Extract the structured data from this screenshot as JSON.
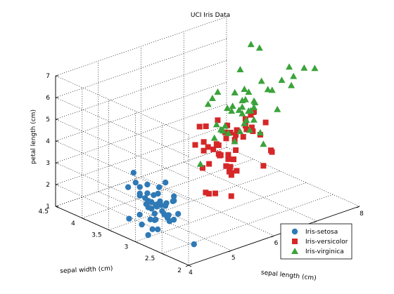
{
  "chart_data": {
    "type": "scatter",
    "title": "UCI Iris Data",
    "xlabel": "sepal length (cm)",
    "ylabel": "sepal width (cm)",
    "zlabel": "petal length (cm)",
    "xlim": [
      4,
      8
    ],
    "ylim": [
      2,
      4.5
    ],
    "zlim": [
      1,
      7
    ],
    "xticks": [
      "4",
      "5",
      "6",
      "7",
      "8"
    ],
    "yticks": [
      "2",
      "2.5",
      "3",
      "3.5",
      "4",
      "4.5"
    ],
    "zticks": [
      "1",
      "2",
      "3",
      "4",
      "5",
      "6",
      "7"
    ],
    "grid": true,
    "legend_position": "bottom-right",
    "series": [
      {
        "name": "Iris-setosa",
        "marker": "circle",
        "color": "#2f7ab6",
        "points": [
          [
            5.1,
            3.5,
            1.4
          ],
          [
            4.9,
            3.0,
            1.4
          ],
          [
            4.7,
            3.2,
            1.3
          ],
          [
            4.6,
            3.1,
            1.5
          ],
          [
            5.0,
            3.6,
            1.4
          ],
          [
            5.4,
            3.9,
            1.7
          ],
          [
            4.6,
            3.4,
            1.4
          ],
          [
            5.0,
            3.4,
            1.5
          ],
          [
            4.4,
            2.9,
            1.4
          ],
          [
            4.9,
            3.1,
            1.5
          ],
          [
            5.4,
            3.7,
            1.5
          ],
          [
            4.8,
            3.4,
            1.6
          ],
          [
            4.8,
            3.0,
            1.4
          ],
          [
            4.3,
            3.0,
            1.1
          ],
          [
            5.8,
            4.0,
            1.2
          ],
          [
            5.7,
            4.4,
            1.5
          ],
          [
            5.4,
            3.9,
            1.3
          ],
          [
            5.1,
            3.5,
            1.4
          ],
          [
            5.7,
            3.8,
            1.7
          ],
          [
            5.1,
            3.8,
            1.5
          ],
          [
            5.4,
            3.4,
            1.7
          ],
          [
            5.1,
            3.7,
            1.5
          ],
          [
            4.6,
            3.6,
            1.0
          ],
          [
            5.1,
            3.3,
            1.7
          ],
          [
            4.8,
            3.4,
            1.9
          ],
          [
            5.0,
            3.0,
            1.6
          ],
          [
            5.0,
            3.4,
            1.6
          ],
          [
            5.2,
            3.5,
            1.5
          ],
          [
            5.2,
            3.4,
            1.4
          ],
          [
            4.7,
            3.2,
            1.6
          ],
          [
            4.8,
            3.1,
            1.6
          ],
          [
            5.4,
            3.4,
            1.5
          ],
          [
            5.2,
            4.1,
            1.5
          ],
          [
            5.5,
            4.2,
            1.4
          ],
          [
            4.9,
            3.1,
            1.5
          ],
          [
            5.0,
            3.2,
            1.2
          ],
          [
            5.5,
            3.5,
            1.3
          ],
          [
            4.9,
            3.1,
            1.5
          ],
          [
            4.4,
            3.0,
            1.3
          ],
          [
            5.1,
            3.4,
            1.5
          ],
          [
            5.0,
            3.5,
            1.3
          ],
          [
            4.5,
            2.3,
            1.3
          ],
          [
            4.4,
            3.2,
            1.3
          ],
          [
            5.0,
            3.5,
            1.6
          ],
          [
            5.1,
            3.8,
            1.9
          ],
          [
            4.8,
            3.0,
            1.4
          ],
          [
            5.1,
            3.8,
            1.6
          ],
          [
            4.6,
            3.2,
            1.4
          ],
          [
            5.3,
            3.7,
            1.5
          ],
          [
            5.0,
            3.3,
            1.4
          ]
        ]
      },
      {
        "name": "Iris-versicolor",
        "marker": "square",
        "color": "#d62728",
        "points": [
          [
            7.0,
            3.2,
            4.7
          ],
          [
            6.4,
            3.2,
            4.5
          ],
          [
            6.9,
            3.1,
            4.9
          ],
          [
            5.5,
            2.3,
            4.0
          ],
          [
            6.5,
            2.8,
            4.6
          ],
          [
            5.7,
            2.8,
            4.5
          ],
          [
            6.3,
            3.3,
            4.7
          ],
          [
            4.9,
            2.4,
            3.3
          ],
          [
            6.6,
            2.9,
            4.6
          ],
          [
            5.2,
            2.7,
            3.9
          ],
          [
            5.0,
            2.0,
            3.5
          ],
          [
            5.9,
            3.0,
            4.2
          ],
          [
            6.0,
            2.2,
            4.0
          ],
          [
            6.1,
            2.9,
            4.7
          ],
          [
            5.6,
            2.9,
            3.6
          ],
          [
            6.7,
            3.1,
            4.4
          ],
          [
            5.6,
            3.0,
            4.5
          ],
          [
            5.8,
            2.7,
            4.1
          ],
          [
            6.2,
            2.2,
            4.5
          ],
          [
            5.6,
            2.5,
            3.9
          ],
          [
            5.9,
            3.2,
            4.8
          ],
          [
            6.1,
            2.8,
            4.0
          ],
          [
            6.3,
            2.5,
            4.9
          ],
          [
            6.1,
            2.8,
            4.7
          ],
          [
            6.4,
            2.9,
            4.3
          ],
          [
            6.6,
            3.0,
            4.4
          ],
          [
            6.8,
            2.8,
            4.8
          ],
          [
            6.7,
            3.0,
            5.0
          ],
          [
            6.0,
            2.9,
            4.5
          ],
          [
            5.7,
            2.6,
            3.5
          ],
          [
            5.5,
            2.4,
            3.8
          ],
          [
            5.5,
            2.4,
            3.7
          ],
          [
            5.8,
            2.7,
            3.9
          ],
          [
            6.0,
            2.7,
            5.1
          ],
          [
            5.4,
            3.0,
            4.5
          ],
          [
            6.0,
            3.4,
            4.5
          ],
          [
            6.7,
            3.1,
            4.7
          ],
          [
            6.3,
            2.3,
            4.4
          ],
          [
            5.6,
            3.0,
            4.1
          ],
          [
            5.5,
            2.5,
            4.0
          ],
          [
            5.5,
            2.6,
            4.4
          ],
          [
            6.1,
            3.0,
            4.6
          ],
          [
            5.8,
            2.6,
            4.0
          ],
          [
            5.0,
            2.3,
            3.3
          ],
          [
            5.6,
            2.7,
            4.2
          ],
          [
            5.7,
            3.0,
            4.2
          ],
          [
            5.7,
            2.9,
            4.2
          ],
          [
            6.2,
            2.9,
            4.3
          ],
          [
            5.1,
            2.5,
            3.0
          ],
          [
            5.7,
            2.8,
            4.1
          ]
        ]
      },
      {
        "name": "Iris-virginica",
        "marker": "triangle",
        "color": "#3aa33a",
        "points": [
          [
            6.3,
            3.3,
            6.0
          ],
          [
            5.8,
            2.7,
            5.1
          ],
          [
            7.1,
            3.0,
            5.9
          ],
          [
            6.3,
            2.9,
            5.6
          ],
          [
            6.5,
            3.0,
            5.8
          ],
          [
            7.6,
            3.0,
            6.6
          ],
          [
            4.9,
            2.5,
            4.5
          ],
          [
            7.3,
            2.9,
            6.3
          ],
          [
            6.7,
            2.5,
            5.8
          ],
          [
            7.2,
            3.6,
            6.1
          ],
          [
            6.5,
            3.2,
            5.1
          ],
          [
            6.4,
            2.7,
            5.3
          ],
          [
            6.8,
            3.0,
            5.5
          ],
          [
            5.7,
            2.5,
            5.0
          ],
          [
            5.8,
            2.8,
            5.1
          ],
          [
            6.4,
            3.2,
            5.3
          ],
          [
            6.5,
            3.0,
            5.5
          ],
          [
            7.7,
            3.8,
            6.7
          ],
          [
            7.7,
            2.6,
            6.9
          ],
          [
            6.0,
            2.2,
            5.0
          ],
          [
            6.9,
            3.2,
            5.7
          ],
          [
            5.6,
            2.8,
            4.9
          ],
          [
            7.7,
            2.8,
            6.7
          ],
          [
            6.3,
            2.7,
            4.9
          ],
          [
            6.7,
            3.3,
            5.7
          ],
          [
            7.2,
            3.2,
            6.0
          ],
          [
            6.2,
            2.8,
            4.8
          ],
          [
            6.1,
            3.0,
            4.9
          ],
          [
            6.4,
            2.8,
            5.6
          ],
          [
            7.2,
            3.0,
            5.8
          ],
          [
            7.4,
            2.8,
            6.1
          ],
          [
            7.9,
            3.8,
            6.4
          ],
          [
            6.4,
            2.8,
            5.6
          ],
          [
            6.3,
            2.8,
            5.1
          ],
          [
            6.1,
            2.6,
            5.6
          ],
          [
            7.7,
            3.0,
            6.1
          ],
          [
            6.3,
            3.4,
            5.6
          ],
          [
            6.4,
            3.1,
            5.5
          ],
          [
            6.0,
            3.0,
            4.8
          ],
          [
            6.9,
            3.1,
            5.4
          ],
          [
            6.7,
            3.1,
            5.6
          ],
          [
            6.9,
            3.1,
            5.1
          ],
          [
            5.8,
            2.7,
            5.1
          ],
          [
            6.8,
            3.2,
            5.9
          ],
          [
            6.7,
            3.3,
            5.7
          ],
          [
            6.7,
            3.0,
            5.2
          ],
          [
            6.3,
            2.5,
            5.0
          ],
          [
            6.5,
            3.0,
            5.2
          ],
          [
            6.2,
            3.4,
            5.4
          ],
          [
            5.9,
            3.0,
            5.1
          ]
        ]
      }
    ]
  }
}
